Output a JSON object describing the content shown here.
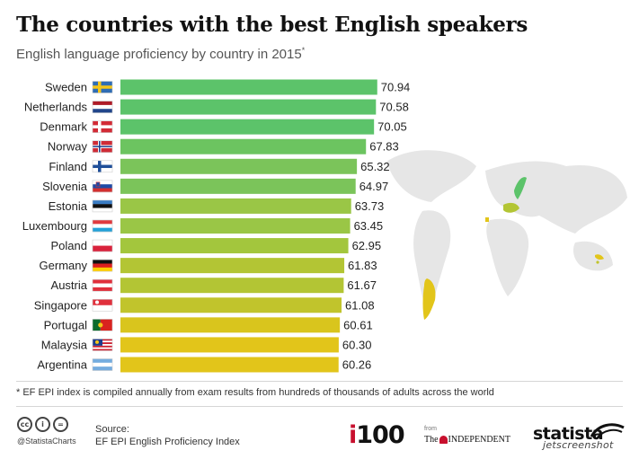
{
  "header": {
    "title": "The countries with the best English speakers",
    "subtitle": "English language proficiency by country in 2015",
    "subtitle_marker": "*"
  },
  "chart_data": {
    "type": "bar",
    "orientation": "horizontal",
    "categories": [
      "Sweden",
      "Netherlands",
      "Denmark",
      "Norway",
      "Finland",
      "Slovenia",
      "Estonia",
      "Luxembourg",
      "Poland",
      "Germany",
      "Austria",
      "Singapore",
      "Portugal",
      "Malaysia",
      "Argentina"
    ],
    "values": [
      70.94,
      70.58,
      70.05,
      67.83,
      65.32,
      64.97,
      63.73,
      63.45,
      62.95,
      61.83,
      61.67,
      61.08,
      60.61,
      60.3,
      60.26
    ],
    "value_labels": [
      "70.94",
      "70.58",
      "70.05",
      "67.83",
      "65.32",
      "64.97",
      "63.73",
      "63.45",
      "62.95",
      "61.83",
      "61.67",
      "61.08",
      "60.61",
      "60.30",
      "60.26"
    ],
    "bar_colors": [
      "#5cc36a",
      "#5cc36a",
      "#5cc36a",
      "#6cc460",
      "#7bc45a",
      "#7bc45a",
      "#9ac646",
      "#9ac646",
      "#a3c63d",
      "#b3c534",
      "#b3c534",
      "#c1c42c",
      "#d9c51d",
      "#e2c51a",
      "#e2c51a"
    ],
    "grid": false,
    "legend": "none",
    "xlim": [
      0,
      71
    ]
  },
  "flags": {
    "Sweden": {
      "type": "nordic",
      "base": "#2f6db5",
      "cross": "#f5c518"
    },
    "Norway": {
      "type": "nordic",
      "base": "#cf2b36",
      "cross": "#ffffff",
      "inner": "#1f3f8a"
    },
    "Denmark": {
      "type": "nordic",
      "base": "#d22b36",
      "cross": "#ffffff"
    },
    "Finland": {
      "type": "nordic",
      "base": "#ffffff",
      "cross": "#1f4f99"
    },
    "Netherlands": {
      "type": "h3",
      "colors": [
        "#ae1c28",
        "#ffffff",
        "#21468b"
      ]
    },
    "Slovenia": {
      "type": "h3",
      "colors": [
        "#ffffff",
        "#1f4ba5",
        "#d32f2f"
      ],
      "emblem": true
    },
    "Estonia": {
      "type": "h3",
      "colors": [
        "#3a7cc3",
        "#111111",
        "#ffffff"
      ]
    },
    "Luxembourg": {
      "type": "h3",
      "colors": [
        "#e03a3e",
        "#ffffff",
        "#22a1d8"
      ]
    },
    "Poland": {
      "type": "h2",
      "colors": [
        "#ffffff",
        "#d9223c"
      ]
    },
    "Germany": {
      "type": "h3",
      "colors": [
        "#111111",
        "#dd1f1f",
        "#ffce00"
      ]
    },
    "Austria": {
      "type": "h3",
      "colors": [
        "#e0303c",
        "#ffffff",
        "#e0303c"
      ]
    },
    "Singapore": {
      "type": "h2",
      "colors": [
        "#e0303c",
        "#ffffff"
      ],
      "emblem": true
    },
    "Portugal": {
      "type": "v2",
      "colors": [
        "#0b6b2c",
        "#d9231f"
      ]
    },
    "Malaysia": {
      "type": "stripes",
      "colors": [
        "#cc1f2f",
        "#ffffff"
      ],
      "canton": "#1c3c8c"
    },
    "Argentina": {
      "type": "h3",
      "colors": [
        "#74acdf",
        "#ffffff",
        "#74acdf"
      ]
    }
  },
  "footnote": "* EF EPI index is compiled annually from exam results from hundreds of thousands of adults across the world",
  "footer": {
    "cc_icons": [
      "cc-icon",
      "by-icon",
      "nd-icon"
    ],
    "cc_labels": [
      "cc",
      "i",
      "="
    ],
    "handle": "@StatistaCharts",
    "source_label": "Source:",
    "source_text": "EF EPI English Proficiency Index",
    "i100_i": "i",
    "i100_rest": "100",
    "from_label": "from",
    "independent_the": "The",
    "independent_name": "INDEPENDENT",
    "statista": "statista",
    "watermark": "jetscreenshot"
  },
  "map": {
    "land_color": "#e6e6e6",
    "highlight_green": "#5cc36a",
    "highlight_yellow": "#e2c51a",
    "highlight_lime": "#b3c534"
  }
}
